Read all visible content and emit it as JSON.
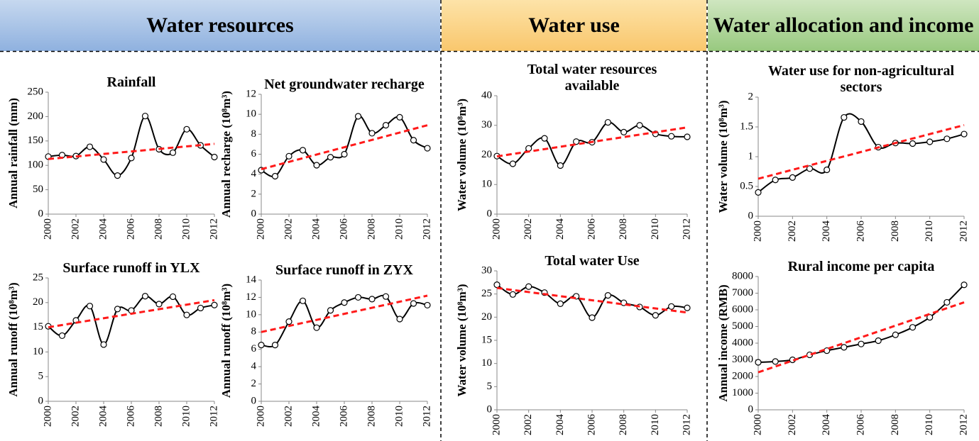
{
  "headers": [
    "Water resources",
    "Water use",
    "Water allocation and income"
  ],
  "chart_data": [
    {
      "type": "line",
      "title": "Rainfall",
      "y_label": "Annual rainfall (mm)",
      "x": [
        2000,
        2001,
        2002,
        2003,
        2004,
        2005,
        2006,
        2007,
        2008,
        2009,
        2010,
        2011,
        2012
      ],
      "series": [
        {
          "color": "#000000",
          "values": [
            118,
            121,
            119,
            138,
            112,
            79,
            115,
            201,
            133,
            126,
            174,
            141,
            117
          ]
        }
      ],
      "trend": {
        "x": [
          2000,
          2012
        ],
        "values": [
          113,
          144
        ],
        "color": "#ff1a1a"
      },
      "xlim": [
        2000,
        2012
      ],
      "xticks": [
        2000,
        2002,
        2004,
        2006,
        2008,
        2010,
        2012
      ],
      "ylim": [
        0,
        250
      ],
      "yticks": [
        0,
        50,
        100,
        150,
        200,
        250
      ]
    },
    {
      "type": "line",
      "title": "Net groundwater recharge",
      "y_label": "Annual recharge (10⁸m³)",
      "x": [
        2000,
        2001,
        2002,
        2003,
        2004,
        2005,
        2006,
        2007,
        2008,
        2009,
        2010,
        2011,
        2012
      ],
      "series": [
        {
          "color": "#000000",
          "values": [
            4.4,
            3.8,
            5.8,
            6.4,
            4.9,
            5.7,
            6.0,
            9.8,
            8.1,
            8.9,
            9.7,
            7.4,
            6.6
          ]
        }
      ],
      "trend": {
        "x": [
          2000,
          2012
        ],
        "values": [
          4.5,
          8.9
        ],
        "color": "#ff1a1a"
      },
      "xlim": [
        2000,
        2012
      ],
      "xticks": [
        2000,
        2002,
        2004,
        2006,
        2008,
        2010,
        2012
      ],
      "ylim": [
        0,
        12
      ],
      "yticks": [
        0,
        2,
        4,
        6,
        8,
        10,
        12
      ]
    },
    {
      "type": "line",
      "title": "Surface runoff in YLX",
      "y_label": "Annual runoff (10⁸m³)",
      "x": [
        2000,
        2001,
        2002,
        2003,
        2004,
        2005,
        2006,
        2007,
        2008,
        2009,
        2010,
        2011,
        2012
      ],
      "series": [
        {
          "color": "#000000",
          "values": [
            15.2,
            13.3,
            16.4,
            19.3,
            11.5,
            18.7,
            18.4,
            21.3,
            19.7,
            21.2,
            17.5,
            18.9,
            19.5
          ]
        }
      ],
      "trend": {
        "x": [
          2000,
          2012
        ],
        "values": [
          15,
          20.5
        ],
        "color": "#ff1a1a"
      },
      "xlim": [
        2000,
        2012
      ],
      "xticks": [
        2000,
        2002,
        2004,
        2006,
        2008,
        2010,
        2012
      ],
      "ylim": [
        0,
        25
      ],
      "yticks": [
        0,
        5,
        10,
        15,
        20,
        25
      ]
    },
    {
      "type": "line",
      "title": "Surface runoff in ZYX",
      "y_label": "Annual runoff (10⁸m³)",
      "x": [
        2000,
        2001,
        2002,
        2003,
        2004,
        2005,
        2006,
        2007,
        2008,
        2009,
        2010,
        2011,
        2012
      ],
      "series": [
        {
          "color": "#000000",
          "values": [
            6.5,
            6.5,
            9.2,
            11.6,
            8.5,
            10.5,
            11.4,
            12.0,
            11.8,
            12.1,
            9.5,
            11.3,
            11.1
          ]
        }
      ],
      "trend": {
        "x": [
          2000,
          2012
        ],
        "values": [
          8,
          12.2
        ],
        "color": "#ff1a1a"
      },
      "xlim": [
        2000,
        2012
      ],
      "xticks": [
        2000,
        2002,
        2004,
        2006,
        2008,
        2010,
        2012
      ],
      "ylim": [
        0,
        14
      ],
      "yticks": [
        0,
        2,
        4,
        6,
        8,
        10,
        12,
        14
      ]
    },
    {
      "type": "line",
      "title": "Total water resources available",
      "y_label": "Water volume (10⁸m³)",
      "x": [
        2000,
        2001,
        2002,
        2003,
        2004,
        2005,
        2006,
        2007,
        2008,
        2009,
        2010,
        2011,
        2012
      ],
      "series": [
        {
          "color": "#000000",
          "values": [
            19.6,
            17.0,
            22.2,
            25.6,
            16.4,
            24.5,
            24.3,
            31.0,
            27.7,
            30.0,
            27.1,
            26.3,
            26.1
          ]
        }
      ],
      "trend": {
        "x": [
          2000,
          2012
        ],
        "values": [
          19.5,
          29.3
        ],
        "color": "#ff1a1a"
      },
      "xlim": [
        2000,
        2012
      ],
      "xticks": [
        2000,
        2002,
        2004,
        2006,
        2008,
        2010,
        2012
      ],
      "ylim": [
        0,
        40
      ],
      "yticks": [
        0,
        10,
        20,
        30,
        40
      ]
    },
    {
      "type": "line",
      "title": "Total water Use",
      "y_label": "Water volume (10⁸m³)",
      "x": [
        2000,
        2001,
        2002,
        2003,
        2004,
        2005,
        2006,
        2007,
        2008,
        2009,
        2010,
        2011,
        2012
      ],
      "series": [
        {
          "color": "#000000",
          "values": [
            27.0,
            24.9,
            26.6,
            25.3,
            22.9,
            24.5,
            19.9,
            24.7,
            23.1,
            22.2,
            20.4,
            22.3,
            22.0
          ]
        }
      ],
      "trend": {
        "x": [
          2000,
          2012
        ],
        "values": [
          26.3,
          21
        ],
        "color": "#ff1a1a"
      },
      "xlim": [
        2000,
        2012
      ],
      "xticks": [
        2000,
        2002,
        2004,
        2006,
        2008,
        2010,
        2012
      ],
      "ylim": [
        0,
        30
      ],
      "yticks": [
        0,
        5,
        10,
        15,
        20,
        25,
        30
      ]
    },
    {
      "type": "line",
      "title": "Water use for non-agricultural sectors",
      "y_label": "Water volume (10⁸m³)",
      "x": [
        2000,
        2001,
        2002,
        2003,
        2004,
        2005,
        2006,
        2007,
        2008,
        2009,
        2010,
        2011,
        2012
      ],
      "series": [
        {
          "color": "#000000",
          "values": [
            0.4,
            0.61,
            0.65,
            0.8,
            0.78,
            1.66,
            1.59,
            1.16,
            1.23,
            1.22,
            1.25,
            1.3,
            1.38
          ]
        }
      ],
      "trend": {
        "x": [
          2000,
          2012
        ],
        "values": [
          0.63,
          1.53
        ],
        "color": "#ff1a1a"
      },
      "xlim": [
        2000,
        2012
      ],
      "xticks": [
        2000,
        2002,
        2004,
        2006,
        2008,
        2010,
        2012
      ],
      "ylim": [
        0,
        2
      ],
      "yticks": [
        0,
        0.5,
        1,
        1.5,
        2
      ]
    },
    {
      "type": "line",
      "title": "Rural income per capita",
      "y_label": "Annual income (RMB)",
      "x": [
        2000,
        2001,
        2002,
        2003,
        2004,
        2005,
        2006,
        2007,
        2008,
        2009,
        2010,
        2011,
        2012
      ],
      "series": [
        {
          "color": "#000000",
          "values": [
            2850,
            2900,
            3000,
            3300,
            3550,
            3750,
            3950,
            4150,
            4500,
            4950,
            5550,
            6450,
            7500
          ]
        }
      ],
      "trend": {
        "x": [
          2000,
          2012
        ],
        "values": [
          2250,
          6450
        ],
        "color": "#ff1a1a"
      },
      "xlim": [
        2000,
        2012
      ],
      "xticks": [
        2000,
        2002,
        2004,
        2006,
        2008,
        2010,
        2012
      ],
      "ylim": [
        0,
        8000
      ],
      "yticks": [
        0,
        1000,
        2000,
        3000,
        4000,
        5000,
        6000,
        7000,
        8000
      ]
    }
  ]
}
